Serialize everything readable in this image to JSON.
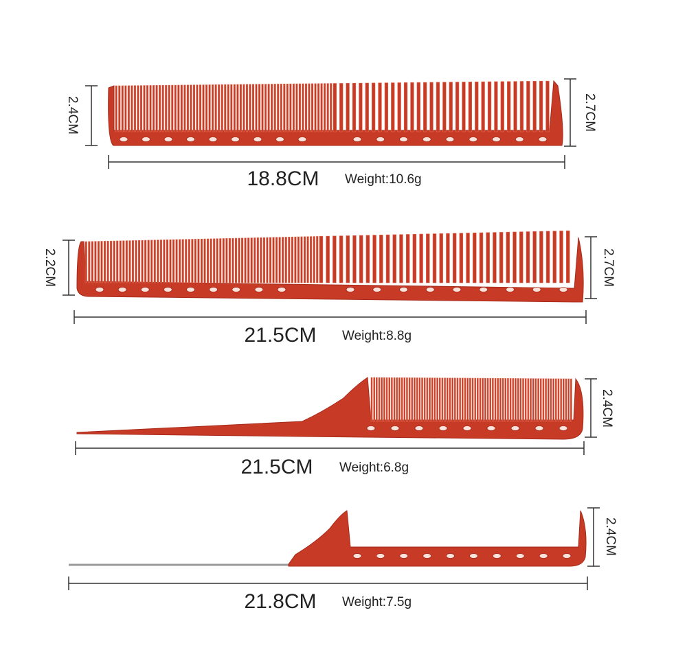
{
  "combs": [
    {
      "left_height": "2.4CM",
      "right_height": "2.7CM",
      "length": "18.8CM",
      "weight": "Weight:10.6g"
    },
    {
      "left_height": "2.2CM",
      "right_height": "2.7CM",
      "length": "21.5CM",
      "weight": "Weight:8.8g"
    },
    {
      "right_height": "2.4CM",
      "length": "21.5CM",
      "weight": "Weight:6.8g"
    },
    {
      "right_height": "2.4CM",
      "length": "21.8CM",
      "weight": "Weight:7.5g"
    }
  ]
}
